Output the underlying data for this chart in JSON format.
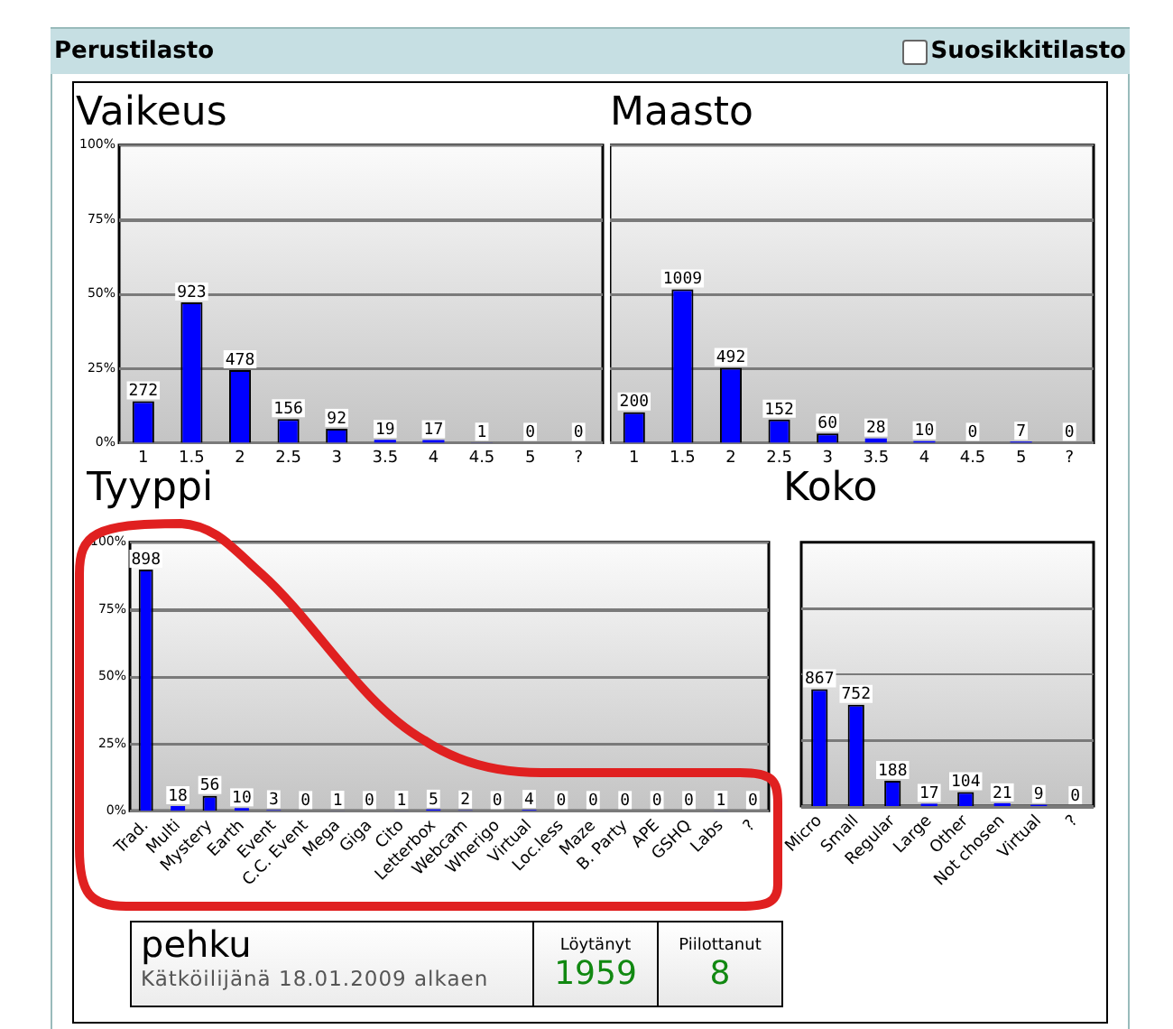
{
  "chart_data": [
    {
      "type": "other",
      "title": "Perustilasto",
      "annotations": [
        "Suosikkitilasto"
      ]
    },
    {
      "type": "bar",
      "title": "Vaikeus",
      "categories": [
        "1",
        "1.5",
        "2",
        "2.5",
        "3",
        "3.5",
        "4",
        "4.5",
        "5",
        "?"
      ],
      "values": [
        272,
        923,
        478,
        156,
        92,
        19,
        17,
        1,
        0,
        0
      ],
      "data_labels": true,
      "color": "#0000ff",
      "ylim": [
        0,
        1958
      ],
      "y2lim": [
        0,
        100
      ],
      "y2ticks": [
        {
          "value": 0,
          "label": "0%"
        },
        {
          "value": 25,
          "label": "25%"
        },
        {
          "value": 50,
          "label": "50%"
        },
        {
          "value": 75,
          "label": "75%"
        },
        {
          "value": 100,
          "label": "100%"
        }
      ],
      "grid": "y"
    },
    {
      "type": "bar",
      "title": "Maasto",
      "categories": [
        "1",
        "1.5",
        "2",
        "2.5",
        "3",
        "3.5",
        "4",
        "4.5",
        "5",
        "?"
      ],
      "values": [
        200,
        1009,
        492,
        152,
        60,
        28,
        10,
        0,
        7,
        0
      ],
      "data_labels": true,
      "color": "#0000ff",
      "ylim": [
        0,
        1958
      ],
      "y2lim": [
        0,
        100
      ],
      "y2ticks": [
        0,
        25,
        50,
        75,
        100
      ],
      "grid": "y",
      "tick_labels": "x"
    },
    {
      "type": "bar",
      "title": "Tyyppi",
      "categories": [
        "Trad.",
        "Multi",
        "Mystery",
        "Earth",
        "Event",
        "C.C. Event",
        "Mega",
        "Giga",
        "Cito",
        "Letterbox",
        "Webcam",
        "Wherigo",
        "Virtual",
        "Loc.less",
        "Maze",
        "B. Party",
        "APE",
        "GSHQ",
        "Labs",
        "?"
      ],
      "values": [
        898,
        18,
        56,
        10,
        3,
        0,
        1,
        0,
        1,
        5,
        2,
        0,
        4,
        0,
        0,
        0,
        0,
        0,
        1,
        0
      ],
      "data_labels": true,
      "color": "#0000ff",
      "ylim": [
        0,
        999
      ],
      "y2lim": [
        0,
        100
      ],
      "y2ticks": [
        {
          "value": 0,
          "label": "0%"
        },
        {
          "value": 25,
          "label": "25%"
        },
        {
          "value": 50,
          "label": "50%"
        },
        {
          "value": 75,
          "label": "75%"
        },
        {
          "value": 100,
          "label": "100%"
        }
      ],
      "grid": "y"
    },
    {
      "type": "bar",
      "title": "Koko",
      "categories": [
        "Micro",
        "Small",
        "Regular",
        "Large",
        "Other",
        "Not chosen",
        "Virtual",
        "?"
      ],
      "values": [
        867,
        752,
        188,
        17,
        104,
        21,
        9,
        0
      ],
      "data_labels": true,
      "color": "#0000ff",
      "ylim": [
        0,
        1958
      ],
      "y2lim": [
        0,
        100
      ],
      "y2ticks": [
        0,
        25,
        50,
        75
      ],
      "grid": "y",
      "tick_labels": "x"
    },
    {
      "type": "other",
      "title": "pehku",
      "subtitle": "Kätköilijänä 18.01.2009 alkaen",
      "annotations": [
        "Löytänyt",
        "1959",
        "Piilottanut",
        "8"
      ]
    }
  ]
}
